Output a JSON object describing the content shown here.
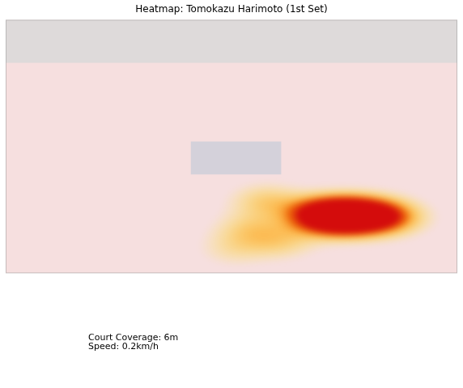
{
  "chart_data": {
    "type": "heatmap",
    "title": "Heatmap: Tomokazu Harimoto (1st Set)",
    "annotations": [
      "Court Coverage: 6m",
      "Speed: 0.2km/h"
    ],
    "xlim": [
      0,
      558
    ],
    "ylim": [
      0,
      314
    ],
    "tick_labels": false,
    "grid": false,
    "points": [
      {
        "x": 423,
        "y": 72,
        "weight": 1.0
      },
      {
        "x": 400,
        "y": 70,
        "weight": 0.8
      },
      {
        "x": 450,
        "y": 72,
        "weight": 0.8
      },
      {
        "x": 380,
        "y": 75,
        "weight": 0.5
      },
      {
        "x": 480,
        "y": 70,
        "weight": 0.4
      },
      {
        "x": 320,
        "y": 90,
        "weight": 0.35
      },
      {
        "x": 300,
        "y": 55,
        "weight": 0.3
      },
      {
        "x": 340,
        "y": 40,
        "weight": 0.3
      },
      {
        "x": 280,
        "y": 30,
        "weight": 0.2
      }
    ]
  }
}
